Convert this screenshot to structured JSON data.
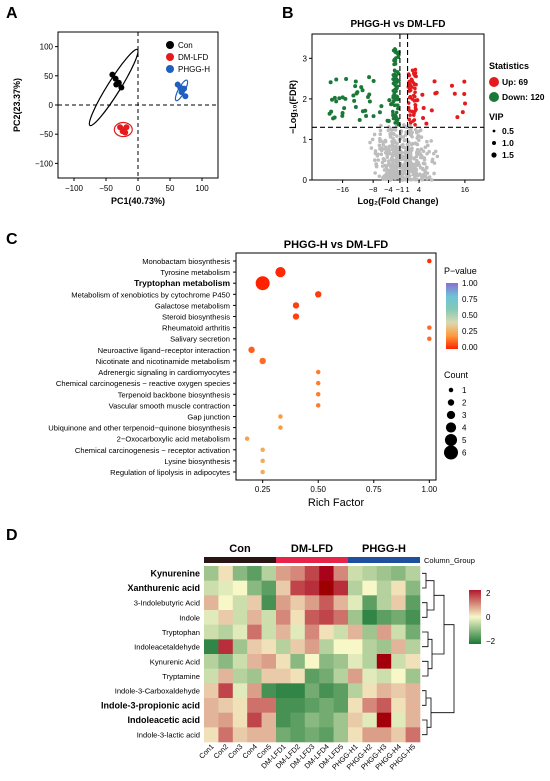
{
  "panel_labels": [
    "A",
    "B",
    "C",
    "D"
  ],
  "chart_data": [
    {
      "panel": "A",
      "type": "scatter",
      "title": "",
      "xlabel": "PC1(40.73%)",
      "ylabel": "PC2(23.37%)",
      "xlim": [
        -125,
        125
      ],
      "ylim": [
        -125,
        125
      ],
      "xticks": [
        -100,
        -50,
        0,
        50,
        100
      ],
      "yticks": [
        -100,
        -50,
        0,
        50,
        100
      ],
      "xtick_labels": [
        "−100",
        "−50",
        "0",
        "50",
        "100"
      ],
      "ytick_labels": [
        "−100",
        "−50",
        "0",
        "50",
        "100"
      ],
      "legend_position": "top-right",
      "series": [
        {
          "name": "Con",
          "color": "#000000",
          "points": [
            [
              -40,
              52
            ],
            [
              -35,
              45
            ],
            [
              -30,
              38
            ],
            [
              -26,
              30
            ],
            [
              -34,
              35
            ]
          ]
        },
        {
          "name": "DM-LFD",
          "color": "#e41a1c",
          "points": [
            [
              -28,
              -38
            ],
            [
              -22,
              -42
            ],
            [
              -18,
              -38
            ],
            [
              -24,
              -45
            ],
            [
              -20,
              -47
            ]
          ]
        },
        {
          "name": "PHGG-H",
          "color": "#1f5fbf",
          "points": [
            [
              62,
              35
            ],
            [
              68,
              22
            ],
            [
              74,
              15
            ],
            [
              72,
              28
            ],
            [
              66,
              30
            ]
          ]
        }
      ]
    },
    {
      "panel": "B",
      "type": "scatter",
      "title": "PHGG-H vs DM-LFD",
      "xlabel": "Log₂(Fold Change)",
      "ylabel": "−Log₁₀(FDR)",
      "xlim": [
        -24,
        21
      ],
      "ylim": [
        0,
        3.6
      ],
      "xticks": [
        -16,
        -8,
        -4,
        -1,
        1,
        4,
        16
      ],
      "xtick_labels": [
        "−16",
        "−8",
        "−4",
        "−1",
        "1",
        "4",
        "16"
      ],
      "yticks": [
        0,
        1,
        2,
        3
      ],
      "ytick_labels": [
        "0",
        "1",
        "2",
        "3"
      ],
      "threshold_fdr_line": 1.3,
      "threshold_fc_lines": [
        -1,
        1
      ],
      "legend_position": "right",
      "legend": {
        "statistics_title": "Statistics",
        "up_label": "Up: 69",
        "down_label": "Down: 120",
        "vip_title": "VIP",
        "vip_labels": [
          "0.5",
          "1.0",
          "1.5"
        ]
      },
      "colors": {
        "up": "#e41a1c",
        "down": "#1b7837",
        "ns": "#bdbdbd"
      }
    },
    {
      "panel": "C",
      "type": "scatter",
      "title": "PHGG-H vs DM-LFD",
      "xlabel": "Rich Factor",
      "xlim": [
        0.13,
        1.03
      ],
      "xticks": [
        0.25,
        0.5,
        0.75,
        1.0
      ],
      "xtick_labels": [
        "0.25",
        "0.50",
        "0.75",
        "1.00"
      ],
      "legend_position": "right",
      "pvalue_title": "P−value",
      "pvalue_ticks": [
        "1.00",
        "0.75",
        "0.50",
        "0.25",
        "0.00"
      ],
      "count_title": "Count",
      "count_labels": [
        "1",
        "2",
        "3",
        "4",
        "5",
        "6"
      ],
      "pathways": [
        {
          "name": "Monobactam biosynthesis",
          "rich": 1.0,
          "count": 1,
          "p": 0.02,
          "bold": false
        },
        {
          "name": "Tyrosine metabolism",
          "rich": 0.33,
          "count": 4,
          "p": 0.01,
          "bold": false
        },
        {
          "name": "Tryptophan metabolism",
          "rich": 0.25,
          "count": 6,
          "p": 0.0,
          "bold": true
        },
        {
          "name": "Metabolism of xenobiotics by cytochrome P450",
          "rich": 0.5,
          "count": 2,
          "p": 0.04,
          "bold": false
        },
        {
          "name": "Galactose metabolism",
          "rich": 0.4,
          "count": 2,
          "p": 0.05,
          "bold": false
        },
        {
          "name": "Steroid biosynthesis",
          "rich": 0.4,
          "count": 2,
          "p": 0.05,
          "bold": false
        },
        {
          "name": "Rheumatoid arthritis",
          "rich": 1.0,
          "count": 1,
          "p": 0.12,
          "bold": false
        },
        {
          "name": "Salivary secretion",
          "rich": 1.0,
          "count": 1,
          "p": 0.12,
          "bold": false
        },
        {
          "name": "Neuroactive ligand−receptor interaction",
          "rich": 0.2,
          "count": 2,
          "p": 0.1,
          "bold": false
        },
        {
          "name": "Nicotinate and nicotinamide metabolism",
          "rich": 0.25,
          "count": 2,
          "p": 0.12,
          "bold": false
        },
        {
          "name": "Adrenergic signaling in cardiomyocytes",
          "rich": 0.5,
          "count": 1,
          "p": 0.15,
          "bold": false
        },
        {
          "name": "Chemical carcinogenesis − reactive oxygen species",
          "rich": 0.5,
          "count": 1,
          "p": 0.15,
          "bold": false
        },
        {
          "name": "Terpenoid backbone biosynthesis",
          "rich": 0.5,
          "count": 1,
          "p": 0.15,
          "bold": false
        },
        {
          "name": "Vascular smooth muscle contraction",
          "rich": 0.5,
          "count": 1,
          "p": 0.15,
          "bold": false
        },
        {
          "name": "Gap junction",
          "rich": 0.33,
          "count": 1,
          "p": 0.2,
          "bold": false
        },
        {
          "name": "Ubiquinone and other terpenoid−quinone biosynthesis",
          "rich": 0.33,
          "count": 1,
          "p": 0.2,
          "bold": false
        },
        {
          "name": "2−Oxocarboxylic acid metabolism",
          "rich": 0.18,
          "count": 1,
          "p": 0.22,
          "bold": false
        },
        {
          "name": "Chemical carcinogenesis − receptor activation",
          "rich": 0.25,
          "count": 1,
          "p": 0.25,
          "bold": false
        },
        {
          "name": "Lysine biosynthesis",
          "rich": 0.25,
          "count": 1,
          "p": 0.25,
          "bold": false
        },
        {
          "name": "Regulation of lipolysis in adipocytes",
          "rich": 0.25,
          "count": 1,
          "p": 0.25,
          "bold": false
        }
      ]
    },
    {
      "panel": "D",
      "type": "heatmap",
      "title": "",
      "groups": [
        {
          "name": "Con",
          "color": "#2a1515",
          "span": 5
        },
        {
          "name": "DM-LFD",
          "color": "#e8234a",
          "span": 5
        },
        {
          "name": "PHGG-H",
          "color": "#1f4f9f",
          "span": 5
        }
      ],
      "column_group_label": "Column_Group",
      "columns": [
        "Con1",
        "Con2",
        "Con3",
        "Con4",
        "Con5",
        "DM-LFD1",
        "DM-LFD2",
        "DM-LFD3",
        "DM-LFD4",
        "DM-LFD5",
        "PHGG-H1",
        "PHGG-H2",
        "PHGG-H3",
        "PHGG-H4",
        "PHGG-H5"
      ],
      "rows": [
        {
          "name": "Kynurenine",
          "bold": true
        },
        {
          "name": "Xanthurenic acid",
          "bold": true
        },
        {
          "name": "3-Indolebutyric Acid",
          "bold": false
        },
        {
          "name": "Indole",
          "bold": false
        },
        {
          "name": "Tryptophan",
          "bold": false
        },
        {
          "name": "Indoleacetaldehyde",
          "bold": false
        },
        {
          "name": "Kynurenic Acid",
          "bold": false
        },
        {
          "name": "Tryptamine",
          "bold": false
        },
        {
          "name": "Indole-3-Carboxaldehyde",
          "bold": false
        },
        {
          "name": "Indole-3-propionic acid",
          "bold": true
        },
        {
          "name": "Indoleacetic acid",
          "bold": true
        },
        {
          "name": "Indole-3-lactic acid",
          "bold": false
        }
      ],
      "values": [
        [
          -0.8,
          0.2,
          -1.0,
          -1.4,
          -0.6,
          0.8,
          1.0,
          1.6,
          2.2,
          1.0,
          -0.4,
          -0.6,
          -0.8,
          -1.0,
          -0.6
        ],
        [
          -0.4,
          -0.2,
          0.0,
          -1.0,
          -1.4,
          0.4,
          1.6,
          1.8,
          2.6,
          1.8,
          -0.6,
          0.0,
          -0.6,
          0.2,
          -1.0
        ],
        [
          0.6,
          0.0,
          -0.4,
          0.4,
          -1.6,
          0.8,
          0.4,
          0.8,
          1.4,
          0.6,
          -0.2,
          -1.4,
          -0.6,
          0.4,
          -1.4
        ],
        [
          -0.2,
          0.4,
          -0.4,
          0.6,
          -0.4,
          1.0,
          0.2,
          1.4,
          1.6,
          1.2,
          -0.8,
          -1.8,
          -1.4,
          -1.2,
          -1.6
        ],
        [
          -0.4,
          -0.6,
          -0.2,
          1.2,
          -0.4,
          0.6,
          -0.2,
          1.0,
          0.2,
          -0.4,
          0.6,
          -0.8,
          0.8,
          -0.4,
          -1.2
        ],
        [
          -1.8,
          1.8,
          -0.8,
          0.4,
          0.2,
          -0.6,
          0.4,
          0.8,
          -0.6,
          0.0,
          0.0,
          -0.6,
          -0.8,
          0.6,
          -0.6
        ],
        [
          -0.6,
          -1.0,
          -0.4,
          0.6,
          0.8,
          0.2,
          -1.0,
          0.0,
          -1.0,
          -0.8,
          -0.2,
          -0.6,
          2.4,
          -0.4,
          0.2
        ],
        [
          -0.4,
          0.6,
          -0.6,
          -0.8,
          0.4,
          0.4,
          0.2,
          -1.4,
          -1.2,
          -0.6,
          0.8,
          -0.2,
          -0.4,
          0.0,
          -0.8
        ],
        [
          0.4,
          1.6,
          -0.2,
          0.8,
          -1.6,
          -1.8,
          -1.8,
          -1.2,
          -1.6,
          -1.4,
          -0.6,
          0.2,
          0.6,
          0.4,
          0.6
        ],
        [
          0.6,
          0.4,
          0.2,
          1.2,
          1.2,
          -1.6,
          -1.6,
          -1.4,
          -1.2,
          -1.4,
          0.2,
          1.0,
          1.4,
          0.2,
          0.6
        ],
        [
          0.6,
          0.8,
          0.2,
          1.6,
          0.6,
          -1.6,
          -1.4,
          -1.0,
          -1.2,
          -0.8,
          0.4,
          -0.2,
          2.4,
          -0.2,
          0.6
        ],
        [
          0.2,
          1.2,
          0.4,
          0.6,
          0.6,
          -1.2,
          -1.4,
          -1.2,
          -1.4,
          -0.8,
          0.2,
          0.8,
          0.8,
          0.4,
          1.2
        ]
      ],
      "color_scale": {
        "min": -2,
        "max": 2,
        "ticks": [
          "2",
          "0",
          "−2"
        ],
        "low": "#1b7837",
        "mid": "#f7f7c8",
        "high": "#b2182b"
      }
    }
  ]
}
